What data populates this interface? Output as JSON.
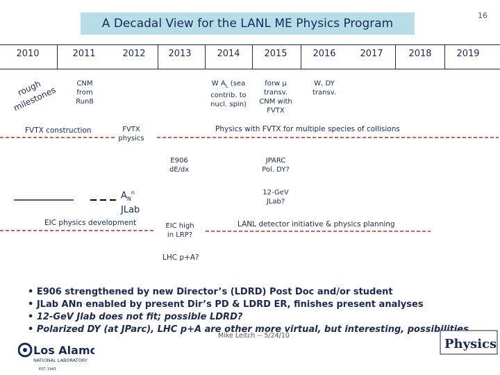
{
  "title": "A Decadal View for the LANL ME Physics Program",
  "page_number": "16",
  "years": [
    "2010",
    "2011",
    "2012",
    "2013",
    "2014",
    "2015",
    "2016",
    "2017",
    "2018",
    "2019"
  ],
  "rough_milestones": [
    "rough",
    "milestones"
  ],
  "items": {
    "cnm_run8": [
      "CNM",
      "from",
      "Run8"
    ],
    "w_al": [
      "W A",
      "L",
      " (sea",
      "contrib. to",
      "nucl. spin)"
    ],
    "forw_mu": [
      "forw μ",
      "transv.",
      "CNM with",
      "FVTX"
    ],
    "w_dy": [
      "W, DY",
      "transv."
    ],
    "fvtx_construction": "FVTX construction",
    "fvtx_physics": [
      "FVTX",
      "physics"
    ],
    "physics_with_fvtx": "Physics with FVTX for multiple species of collisions",
    "e906": [
      "E906",
      "dE/dx"
    ],
    "jparc": [
      "JPARC",
      "Pol. DY?"
    ],
    "an_jlab": [
      "A",
      "N",
      "n",
      "JLab"
    ],
    "gev12_jlab": [
      "12-GeV",
      "JLab?"
    ],
    "eic_dev": "EIC physics development",
    "eic_lrp": [
      "EIC high",
      "in LRP?"
    ],
    "lanl_detector": "LANL detector initiative & physics planning",
    "lhc_pa": "LHC p+A?"
  },
  "bullets": [
    "• E906 strengthened by new Director’s (LDRD) Post Doc and/or student",
    "• JLab ANn enabled by present Dir’s PD & LDRD ER, finishes present analyses",
    "• 12-GeV Jlab does not fit; possible LDRD?",
    "• Polarized DY (at JParc), LHC p+A are other more virtual, but interesting, possibilities"
  ],
  "footer": "Mike Leitch -- 5/24/10",
  "logo_left": {
    "name": "Los Alamos",
    "sub": "NATIONAL LABORATORY",
    "est": "EST. 1943"
  },
  "logo_right": "Physics",
  "colors": {
    "title_bg": "#b7dde8",
    "text": "#1a2a55",
    "red_dashed": "#c0282f"
  }
}
